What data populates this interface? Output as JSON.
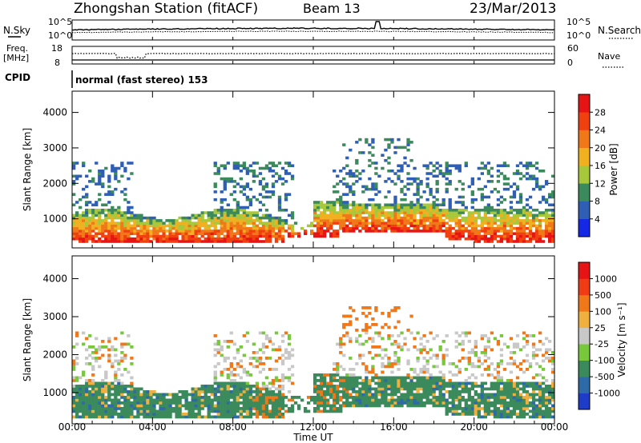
{
  "header": {
    "station": "Zhongshan Station (fitACF)",
    "beam": "Beam 13",
    "date": "23/Mar/2013"
  },
  "noise_panel": {
    "left_label": "N.Sky",
    "right_label": "N.Search",
    "left_ticks": [
      "10^5",
      "10^0"
    ],
    "right_ticks": [
      "10^5",
      "10^0"
    ]
  },
  "freq_panel": {
    "left_label_1": "Freq.",
    "left_label_2": "[MHz]",
    "right_label": "Nave",
    "left_ticks": [
      "18",
      "8"
    ],
    "right_ticks": [
      "60",
      "0"
    ]
  },
  "cpid": {
    "label": "CPID",
    "value": "normal (fast stereo) 153"
  },
  "chart_data": [
    {
      "type": "heatmap",
      "name": "power",
      "ylabel": "Slant Range [km]",
      "xlabel": "Time UT",
      "x_ticks": [
        "00:00",
        "04:00",
        "08:00",
        "12:00",
        "16:00",
        "20:00",
        "00:00"
      ],
      "x_range_hours": [
        0,
        24
      ],
      "y_ticks": [
        1000,
        2000,
        3000,
        4000
      ],
      "ylim": [
        180,
        4600
      ],
      "colorbar": {
        "label": "Power [dB]",
        "ticks": [
          "28",
          "24",
          "20",
          "16",
          "12",
          "8",
          "4"
        ],
        "colors": [
          "#1428e6",
          "#2e5fb4",
          "#3a8a5c",
          "#a8c83c",
          "#f0b020",
          "#f07818",
          "#f04010",
          "#e61414"
        ]
      }
    },
    {
      "type": "heatmap",
      "name": "velocity",
      "ylabel": "Slant Range [km]",
      "xlabel": "Time UT",
      "x_ticks": [
        "00:00",
        "04:00",
        "08:00",
        "12:00",
        "16:00",
        "20:00",
        "00:00"
      ],
      "x_range_hours": [
        0,
        24
      ],
      "y_ticks": [
        1000,
        2000,
        3000,
        4000
      ],
      "ylim": [
        180,
        4600
      ],
      "colorbar": {
        "label": "Velocity [m s⁻¹]",
        "ticks": [
          "1000",
          "500",
          "100",
          "25",
          "-25",
          "-100",
          "-500",
          "-1000"
        ],
        "colors": [
          "#1e3cc8",
          "#2e6aa8",
          "#3a8a5c",
          "#78c83c",
          "#c8c8c8",
          "#f0b040",
          "#f07818",
          "#f03c14",
          "#e61414"
        ]
      }
    }
  ],
  "axis": {
    "xlabel": "Time UT"
  }
}
